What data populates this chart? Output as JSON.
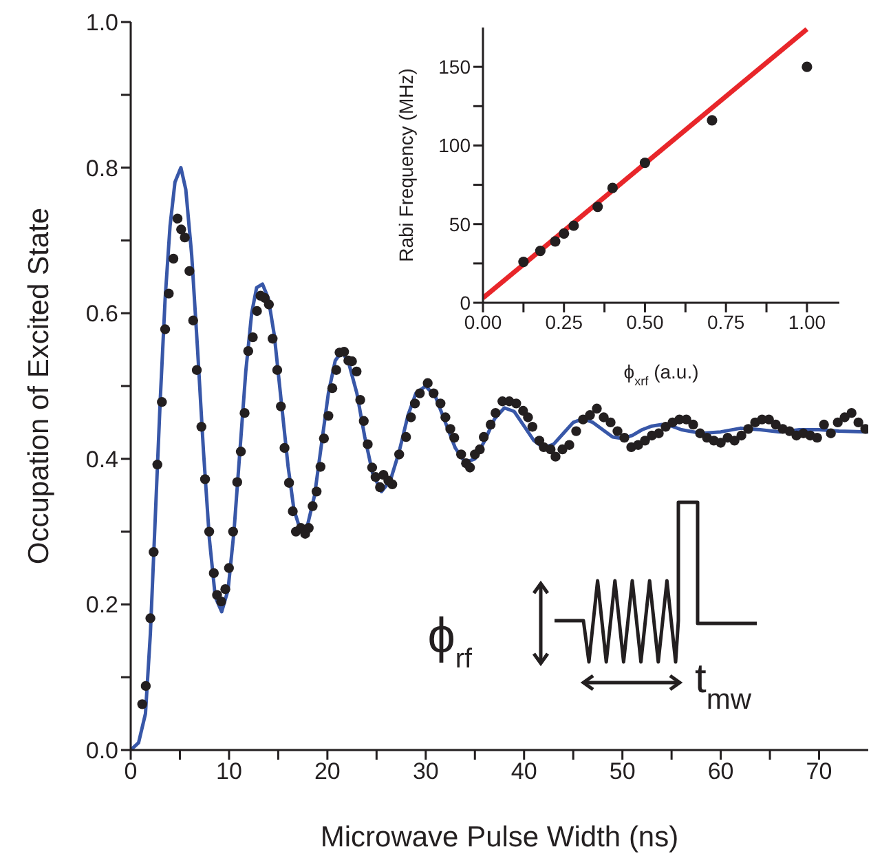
{
  "chart_data": [
    {
      "type": "scatter",
      "xlabel": "Microwave Pulse Width (ns)",
      "ylabel": "Occupation of Excited State",
      "xlim": [
        0,
        75
      ],
      "ylim": [
        0,
        1.0
      ],
      "xticks": [
        0,
        {
          "value": 5,
          "label": null
        },
        10,
        {
          "value": 15,
          "label": null
        },
        20,
        {
          "value": 25,
          "label": null
        },
        30,
        {
          "value": 35,
          "label": null
        },
        40,
        {
          "value": 45,
          "label": null
        },
        50,
        {
          "value": 55,
          "label": null
        },
        60,
        {
          "value": 65,
          "label": null
        },
        70
      ],
      "yticks": [
        {
          "value": 0,
          "label": "0.0"
        },
        {
          "value": 0.1,
          "label": null
        },
        0.2,
        {
          "value": 0.3,
          "label": null
        },
        0.4,
        {
          "value": 0.5,
          "label": null
        },
        0.6,
        {
          "value": 0.7,
          "label": null
        },
        0.8,
        {
          "value": 0.9,
          "label": null
        },
        {
          "value": 1.0,
          "label": "1.0"
        }
      ],
      "line_style": "solid",
      "annotations": [
        "ϕ$_{rf}$",
        "t$_{mw}$"
      ],
      "series": [
        {
          "marker": "circle",
          "color": "#231f20",
          "x": [
            1.17,
            1.53,
            2.0,
            2.33,
            2.71,
            3.17,
            3.5,
            3.87,
            4.34,
            4.76,
            5.13,
            5.5,
            5.97,
            6.35,
            6.72,
            7.19,
            7.56,
            7.98,
            8.45,
            8.78,
            9.2,
            9.62,
            9.99,
            10.41,
            10.83,
            11.2,
            11.58,
            11.95,
            12.42,
            12.84,
            13.2,
            13.63,
            14.05,
            14.43,
            14.9,
            15.27,
            15.64,
            16.1,
            16.48,
            16.8,
            17.3,
            17.74,
            18.1,
            18.5,
            18.9,
            19.3,
            19.65,
            20.1,
            20.5,
            20.9,
            21.24,
            21.7,
            22.13,
            22.5,
            22.97,
            23.34,
            23.7,
            24.1,
            24.55,
            24.9,
            25.35,
            25.7,
            26.2,
            26.6,
            27.3,
            28.0,
            28.5,
            28.9,
            29.4,
            30.2,
            30.8,
            31.5,
            32.0,
            32.5,
            32.9,
            33.6,
            34.1,
            34.5,
            35.0,
            35.5,
            35.9,
            36.6,
            37.1,
            37.8,
            38.5,
            39.2,
            39.9,
            40.4,
            40.85,
            41.55,
            42.0,
            42.7,
            43.2,
            43.9,
            44.6,
            45.3,
            46.0,
            46.7,
            47.4,
            48.1,
            48.8,
            49.5,
            50.2,
            50.9,
            51.6,
            52.3,
            53.0,
            53.7,
            54.4,
            55.1,
            55.8,
            56.5,
            57.2,
            57.9,
            58.6,
            59.3,
            60.0,
            60.7,
            61.4,
            62.1,
            62.8,
            63.5,
            64.2,
            64.9,
            65.6,
            66.3,
            67.0,
            67.7,
            68.4,
            69.1,
            69.8,
            70.5,
            71.2,
            71.9,
            72.6,
            73.3,
            74.0,
            74.7
          ],
          "values": [
            0.063,
            0.088,
            0.181,
            0.272,
            0.392,
            0.478,
            0.578,
            0.627,
            0.675,
            0.73,
            0.715,
            0.704,
            0.658,
            0.59,
            0.522,
            0.444,
            0.372,
            0.3,
            0.243,
            0.213,
            0.204,
            0.221,
            0.25,
            0.3,
            0.368,
            0.41,
            0.463,
            0.548,
            0.567,
            0.603,
            0.624,
            0.621,
            0.612,
            0.565,
            0.522,
            0.472,
            0.415,
            0.367,
            0.328,
            0.3,
            0.305,
            0.297,
            0.305,
            0.335,
            0.355,
            0.389,
            0.428,
            0.459,
            0.497,
            0.522,
            0.546,
            0.547,
            0.535,
            0.534,
            0.52,
            0.481,
            0.452,
            0.42,
            0.388,
            0.375,
            0.361,
            0.378,
            0.37,
            0.365,
            0.406,
            0.43,
            0.457,
            0.476,
            0.49,
            0.504,
            0.49,
            0.476,
            0.457,
            0.441,
            0.429,
            0.406,
            0.394,
            0.388,
            0.406,
            0.413,
            0.43,
            0.447,
            0.463,
            0.479,
            0.479,
            0.476,
            0.466,
            0.457,
            0.444,
            0.425,
            0.416,
            0.413,
            0.403,
            0.413,
            0.419,
            0.438,
            0.454,
            0.46,
            0.469,
            0.457,
            0.45,
            0.438,
            0.429,
            0.416,
            0.419,
            0.425,
            0.432,
            0.435,
            0.444,
            0.45,
            0.454,
            0.454,
            0.447,
            0.435,
            0.429,
            0.425,
            0.422,
            0.429,
            0.425,
            0.432,
            0.441,
            0.45,
            0.454,
            0.454,
            0.447,
            0.441,
            0.438,
            0.432,
            0.435,
            0.432,
            0.429,
            0.447,
            0.435,
            0.45,
            0.457,
            0.463,
            0.45,
            0.441
          ]
        },
        {
          "type": "line",
          "marker": "none",
          "color": "#3857a8",
          "x": [
            0,
            0.8,
            1.5,
            2,
            2.5,
            3,
            3.5,
            4,
            4.5,
            5.1,
            5.6,
            6.2,
            6.8,
            7.4,
            8,
            8.6,
            9.25,
            9.9,
            10.5,
            11.1,
            11.7,
            12.3,
            12.8,
            13.4,
            14,
            14.6,
            15.3,
            16,
            16.6,
            17.3,
            18,
            18.7,
            19.4,
            20.1,
            20.8,
            21.5,
            22.2,
            23,
            23.8,
            24.6,
            25.5,
            26.4,
            27.3,
            28.2,
            29,
            30,
            31,
            32,
            33,
            34,
            35,
            36,
            37,
            38,
            39,
            40,
            41,
            42,
            43,
            44,
            45,
            46,
            47,
            48,
            49,
            50,
            51,
            52,
            53,
            54,
            55,
            56,
            58,
            60,
            62,
            64,
            66,
            68,
            70,
            72,
            75
          ],
          "values": [
            0,
            0.01,
            0.05,
            0.16,
            0.32,
            0.48,
            0.62,
            0.72,
            0.78,
            0.8,
            0.77,
            0.68,
            0.55,
            0.41,
            0.29,
            0.21,
            0.19,
            0.22,
            0.3,
            0.41,
            0.52,
            0.6,
            0.635,
            0.64,
            0.62,
            0.57,
            0.48,
            0.39,
            0.33,
            0.3,
            0.31,
            0.35,
            0.42,
            0.49,
            0.535,
            0.548,
            0.53,
            0.49,
            0.43,
            0.38,
            0.355,
            0.37,
            0.41,
            0.46,
            0.49,
            0.5,
            0.485,
            0.45,
            0.415,
            0.395,
            0.4,
            0.425,
            0.455,
            0.47,
            0.465,
            0.445,
            0.425,
            0.415,
            0.42,
            0.435,
            0.45,
            0.455,
            0.45,
            0.44,
            0.43,
            0.428,
            0.432,
            0.44,
            0.445,
            0.447,
            0.445,
            0.44,
            0.435,
            0.437,
            0.442,
            0.44,
            0.437,
            0.44,
            0.44,
            0.438,
            0.437
          ]
        }
      ]
    },
    {
      "type": "scatter",
      "xlabel": "ϕ$_{xrf}$ (a.u.)",
      "ylabel": "Rabi Frequency (MHz)",
      "xlim": [
        0,
        1.1
      ],
      "ylim": [
        0,
        175
      ],
      "xticks": [
        {
          "value": 0,
          "label": "0.00"
        },
        {
          "value": 0.125,
          "label": null
        },
        0.25,
        {
          "value": 0.375,
          "label": null
        },
        {
          "value": 0.5,
          "label": "0.50"
        },
        {
          "value": 0.625,
          "label": null
        },
        0.75,
        {
          "value": 0.875,
          "label": null
        },
        {
          "value": 1.0,
          "label": "1.00"
        }
      ],
      "yticks": [
        0,
        {
          "value": 25,
          "label": null
        },
        50,
        {
          "value": 75,
          "label": null
        },
        100,
        {
          "value": 125,
          "label": null
        },
        150
      ],
      "line_style": "solid",
      "series": [
        {
          "type": "line",
          "marker": "none",
          "color": "#e8262a",
          "x": [
            0,
            1.0
          ],
          "values": [
            3,
            174
          ]
        },
        {
          "marker": "circle",
          "color": "#231f20",
          "x": [
            0.125,
            0.177,
            0.223,
            0.25,
            0.28,
            0.354,
            0.4,
            0.5,
            0.707,
            1.0
          ],
          "values": [
            26,
            33,
            39,
            44,
            49,
            61,
            73,
            89,
            116,
            150
          ]
        }
      ]
    }
  ]
}
